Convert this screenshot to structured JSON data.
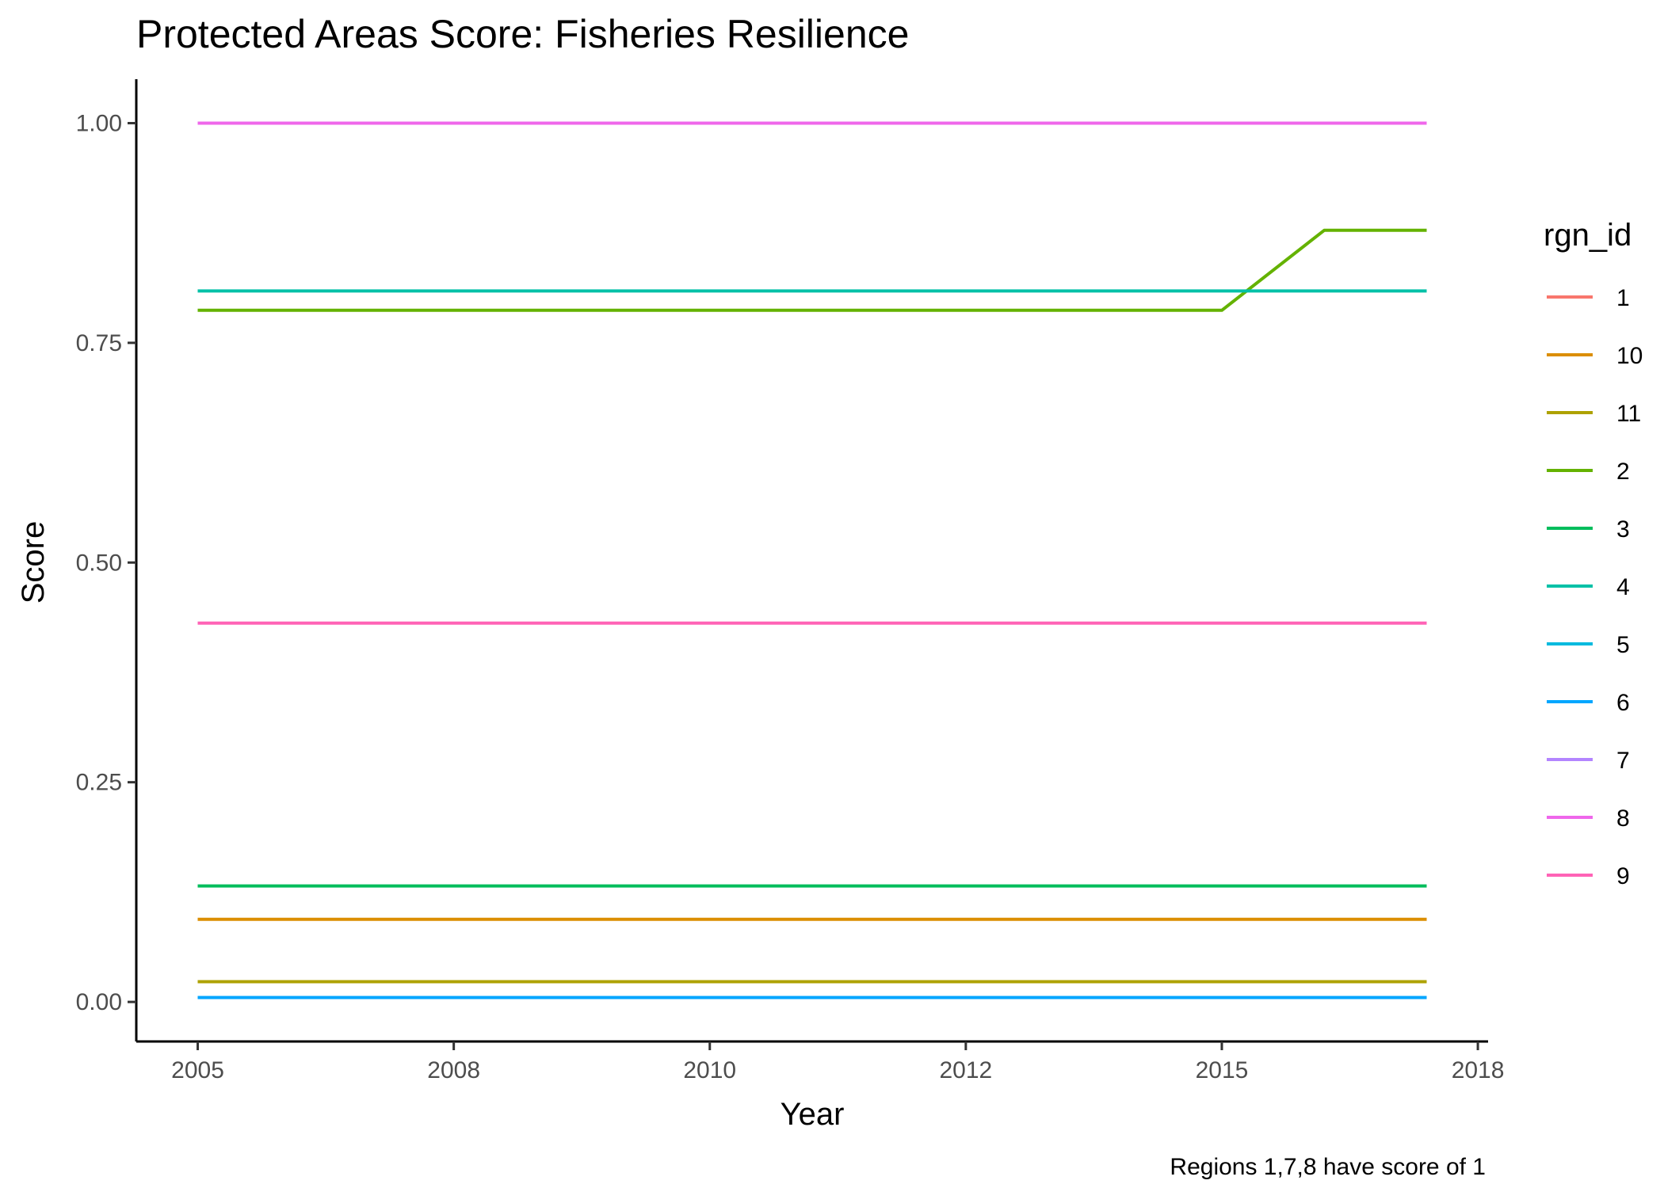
{
  "chart_data": {
    "type": "line",
    "title": "Protected Areas Score: Fisheries Resilience",
    "xlabel": "Year",
    "ylabel": "Score",
    "caption": "Regions 1,7,8 have score of 1",
    "x": [
      2005,
      2006,
      2007,
      2008,
      2009,
      2010,
      2011,
      2012,
      2013,
      2014,
      2015,
      2016,
      2017
    ],
    "x_tick_labels": [
      "2005",
      "2008",
      "2010",
      "2012",
      "2015",
      "2018"
    ],
    "x_ticks": [
      2005,
      2007.5,
      2010,
      2012.5,
      2015,
      2017.5
    ],
    "xlim": [
      2004.4,
      2017.6
    ],
    "y_ticks": [
      0.0,
      0.25,
      0.5,
      0.75,
      1.0
    ],
    "y_tick_labels": [
      "0.00",
      "0.25",
      "0.50",
      "0.75",
      "1.00"
    ],
    "ylim": [
      -0.045,
      1.05
    ],
    "grid": false,
    "legend": {
      "title": "rgn_id",
      "position": "right"
    },
    "series": [
      {
        "name": "1",
        "color": "#F8766D",
        "values": [
          1,
          1,
          1,
          1,
          1,
          1,
          1,
          1,
          1,
          1,
          1,
          1,
          1
        ]
      },
      {
        "name": "10",
        "color": "#DB8E00",
        "values": [
          0.094,
          0.094,
          0.094,
          0.094,
          0.094,
          0.094,
          0.094,
          0.094,
          0.094,
          0.094,
          0.094,
          0.094,
          0.094
        ]
      },
      {
        "name": "11",
        "color": "#AEA200",
        "values": [
          0.023,
          0.023,
          0.023,
          0.023,
          0.023,
          0.023,
          0.023,
          0.023,
          0.023,
          0.023,
          0.023,
          0.023,
          0.023
        ]
      },
      {
        "name": "2",
        "color": "#64B200",
        "values": [
          0.787,
          0.787,
          0.787,
          0.787,
          0.787,
          0.787,
          0.787,
          0.787,
          0.787,
          0.787,
          0.787,
          0.878,
          0.878
        ]
      },
      {
        "name": "3",
        "color": "#00BD5C",
        "values": [
          0.132,
          0.132,
          0.132,
          0.132,
          0.132,
          0.132,
          0.132,
          0.132,
          0.132,
          0.132,
          0.132,
          0.132,
          0.132
        ]
      },
      {
        "name": "4",
        "color": "#00C1A7",
        "values": [
          0.809,
          0.809,
          0.809,
          0.809,
          0.809,
          0.809,
          0.809,
          0.809,
          0.809,
          0.809,
          0.809,
          0.809,
          0.809
        ]
      },
      {
        "name": "5",
        "color": "#00BADE",
        "values": [
          0.005,
          0.005,
          0.005,
          0.005,
          0.005,
          0.005,
          0.005,
          0.005,
          0.005,
          0.005,
          0.005,
          0.005,
          0.005
        ]
      },
      {
        "name": "6",
        "color": "#00A6FF",
        "values": [
          0.005,
          0.005,
          0.005,
          0.005,
          0.005,
          0.005,
          0.005,
          0.005,
          0.005,
          0.005,
          0.005,
          0.005,
          0.005
        ]
      },
      {
        "name": "7",
        "color": "#B385FF",
        "values": [
          1,
          1,
          1,
          1,
          1,
          1,
          1,
          1,
          1,
          1,
          1,
          1,
          1
        ]
      },
      {
        "name": "8",
        "color": "#EF67EB",
        "values": [
          1,
          1,
          1,
          1,
          1,
          1,
          1,
          1,
          1,
          1,
          1,
          1,
          1
        ]
      },
      {
        "name": "9",
        "color": "#FF63B6",
        "values": [
          0.431,
          0.431,
          0.431,
          0.431,
          0.431,
          0.431,
          0.431,
          0.431,
          0.431,
          0.431,
          0.431,
          0.431,
          0.431
        ]
      }
    ]
  }
}
